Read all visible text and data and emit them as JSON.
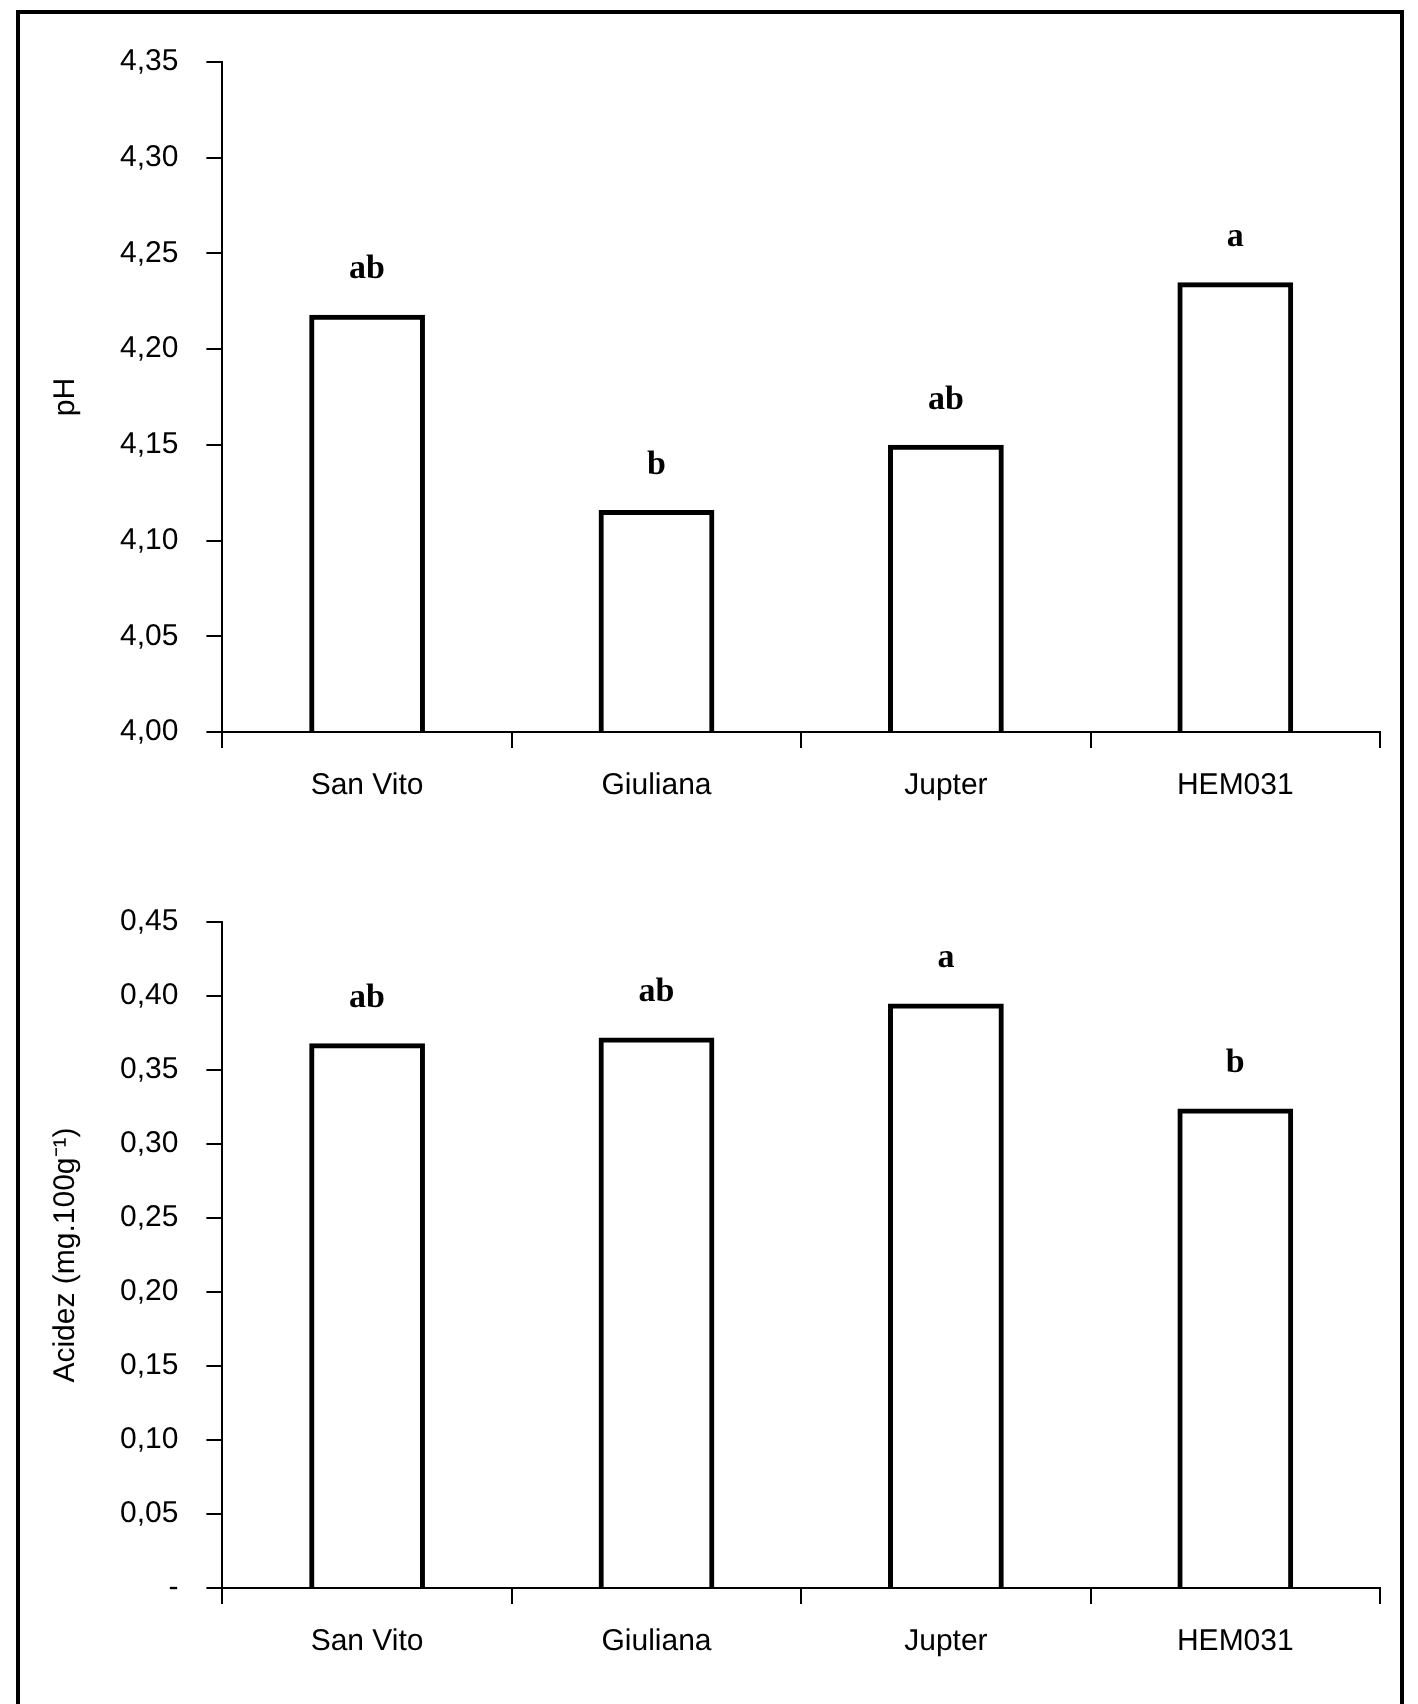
{
  "chart_data": [
    {
      "type": "bar",
      "ylabel": "pH",
      "categories": [
        "San Vito",
        "Giuliana",
        "Jupter",
        "HEM031"
      ],
      "values": [
        4.218,
        4.116,
        4.15,
        4.235
      ],
      "color": "#000000",
      "ylim": [
        4.0,
        4.35
      ],
      "yticks": [
        {
          "value": 4.0,
          "label": "4,00"
        },
        {
          "value": 4.05,
          "label": "4,05"
        },
        {
          "value": 4.1,
          "label": "4,10"
        },
        {
          "value": 4.15,
          "label": "4,15"
        },
        {
          "value": 4.2,
          "label": "4,20"
        },
        {
          "value": 4.25,
          "label": "4,25"
        },
        {
          "value": 4.3,
          "label": "4,30"
        },
        {
          "value": 4.35,
          "label": "4,35"
        }
      ],
      "grid": false,
      "legend": false,
      "annotations": [
        {
          "text": "ab",
          "x": "San Vito",
          "y": 4.218
        },
        {
          "text": "b",
          "x": "Giuliana",
          "y": 4.116
        },
        {
          "text": "ab",
          "x": "Jupter",
          "y": 4.15
        },
        {
          "text": "a",
          "x": "HEM031",
          "y": 4.235
        }
      ]
    },
    {
      "type": "bar",
      "ylabel": "Acidez (mg.100g⁻¹)",
      "categories": [
        "San Vito",
        "Giuliana",
        "Jupter",
        "HEM031"
      ],
      "values": [
        0.368,
        0.372,
        0.395,
        0.324
      ],
      "color": "#000000",
      "ylim": [
        0,
        0.45
      ],
      "yticks": [
        {
          "value": 0,
          "label": "-"
        },
        {
          "value": 0.05,
          "label": "0,05"
        },
        {
          "value": 0.1,
          "label": "0,10"
        },
        {
          "value": 0.15,
          "label": "0,15"
        },
        {
          "value": 0.2,
          "label": "0,20"
        },
        {
          "value": 0.25,
          "label": "0,25"
        },
        {
          "value": 0.3,
          "label": "0,30"
        },
        {
          "value": 0.35,
          "label": "0,35"
        },
        {
          "value": 0.4,
          "label": "0,40"
        },
        {
          "value": 0.45,
          "label": "0,45"
        }
      ],
      "grid": false,
      "legend": false,
      "annotations": [
        {
          "text": "ab",
          "x": "San Vito",
          "y": 0.368
        },
        {
          "text": "ab",
          "x": "Giuliana",
          "y": 0.372
        },
        {
          "text": "a",
          "x": "Jupter",
          "y": 0.395
        },
        {
          "text": "b",
          "x": "HEM031",
          "y": 0.324
        }
      ]
    }
  ]
}
